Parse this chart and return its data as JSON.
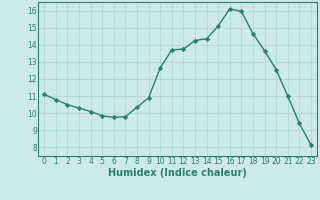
{
  "x": [
    0,
    1,
    2,
    3,
    4,
    5,
    6,
    7,
    8,
    9,
    10,
    11,
    12,
    13,
    14,
    15,
    16,
    17,
    18,
    19,
    20,
    21,
    22,
    23
  ],
  "y": [
    11.1,
    10.8,
    10.5,
    10.3,
    10.1,
    9.85,
    9.75,
    9.8,
    10.35,
    10.9,
    12.65,
    13.7,
    13.75,
    14.25,
    14.35,
    15.1,
    16.1,
    15.95,
    14.65,
    13.65,
    12.55,
    11.0,
    9.4,
    8.15
  ],
  "line_color": "#2e7d6e",
  "marker": "D",
  "markersize": 2.2,
  "linewidth": 1.0,
  "xlabel": "Humidex (Indice chaleur)",
  "ylim": [
    7.5,
    16.5
  ],
  "xlim": [
    -0.5,
    23.5
  ],
  "yticks": [
    8,
    9,
    10,
    11,
    12,
    13,
    14,
    15,
    16
  ],
  "xticks": [
    0,
    1,
    2,
    3,
    4,
    5,
    6,
    7,
    8,
    9,
    10,
    11,
    12,
    13,
    14,
    15,
    16,
    17,
    18,
    19,
    20,
    21,
    22,
    23
  ],
  "bg_color": "#cceae8",
  "grid_color": "#aad4d0",
  "tick_fontsize": 5.5,
  "xlabel_fontsize": 7.0
}
